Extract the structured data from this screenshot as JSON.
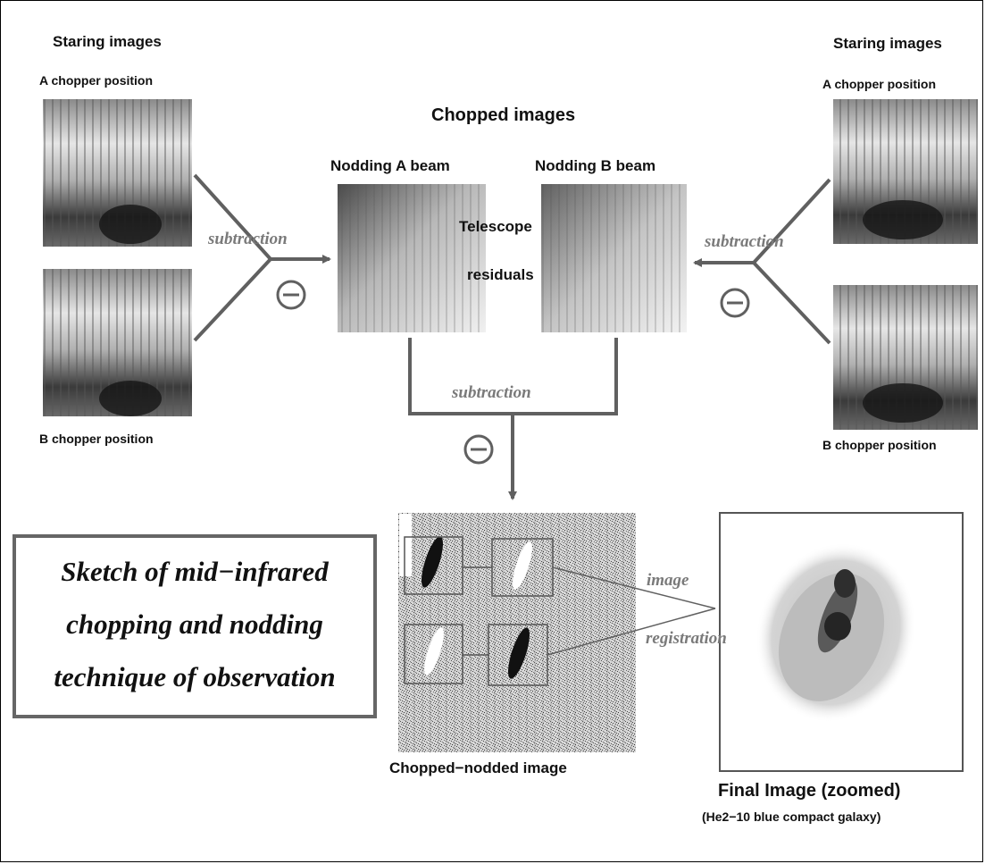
{
  "left_column": {
    "heading": "Staring images",
    "top_label": "A chopper position",
    "bottom_label": "B chopper position"
  },
  "right_column": {
    "heading": "Staring images",
    "top_label": "A chopper position",
    "bottom_label": "B chopper position"
  },
  "chopped": {
    "heading": "Chopped images",
    "nod_a_label": "Nodding A beam",
    "nod_b_label": "Nodding B beam",
    "residual_line1": "Telescope",
    "residual_line2": "residuals"
  },
  "operations": {
    "subtraction": "subtraction",
    "image": "image",
    "registration": "registration"
  },
  "bottom": {
    "nodded_caption": "Chopped−nodded image",
    "final_caption": "Final Image (zoomed)",
    "final_sub": "(He2−10 blue compact galaxy)"
  },
  "sketch": {
    "line1": "Sketch of mid−infrared",
    "line2": "chopping and nodding",
    "line3": "technique of observation"
  },
  "colors": {
    "arrow": "#606060",
    "op_text": "#7a7a7a",
    "frame": "#000000"
  }
}
